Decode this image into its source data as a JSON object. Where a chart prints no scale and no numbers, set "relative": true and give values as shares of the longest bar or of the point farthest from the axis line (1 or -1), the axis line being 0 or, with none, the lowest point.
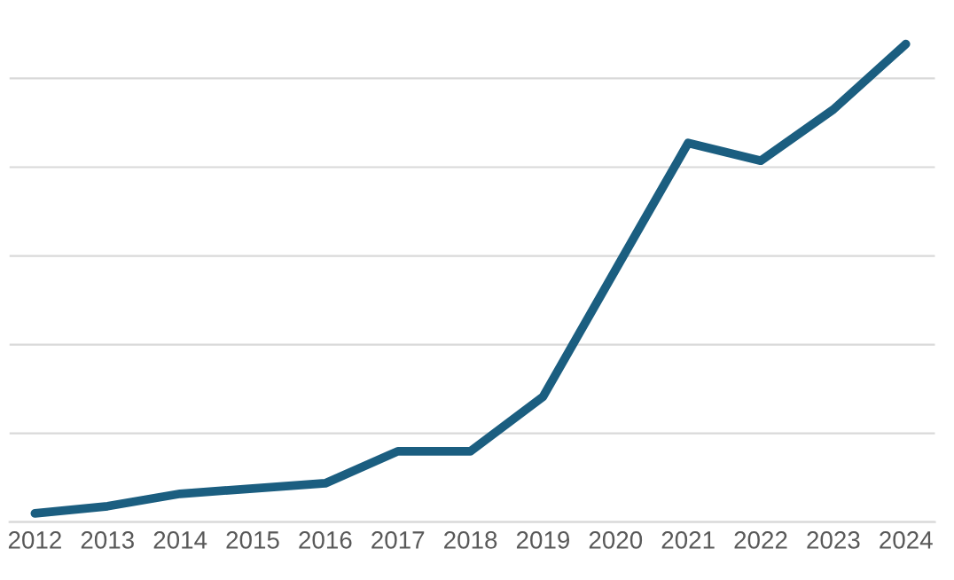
{
  "chart_data": {
    "type": "line",
    "relative": true,
    "grid": "y",
    "categories": [
      "2012",
      "2013",
      "2014",
      "2015",
      "2016",
      "2017",
      "2018",
      "2019",
      "2020",
      "2021",
      "2022",
      "2023",
      "2024"
    ],
    "series": [
      {
        "color": "#1b5e80",
        "values": [
          0.018,
          0.033,
          0.059,
          0.07,
          0.081,
          0.148,
          0.148,
          0.262,
          0.528,
          0.793,
          0.756,
          0.863,
          1
        ]
      }
    ],
    "marker": "none",
    "line_style": "solid"
  }
}
